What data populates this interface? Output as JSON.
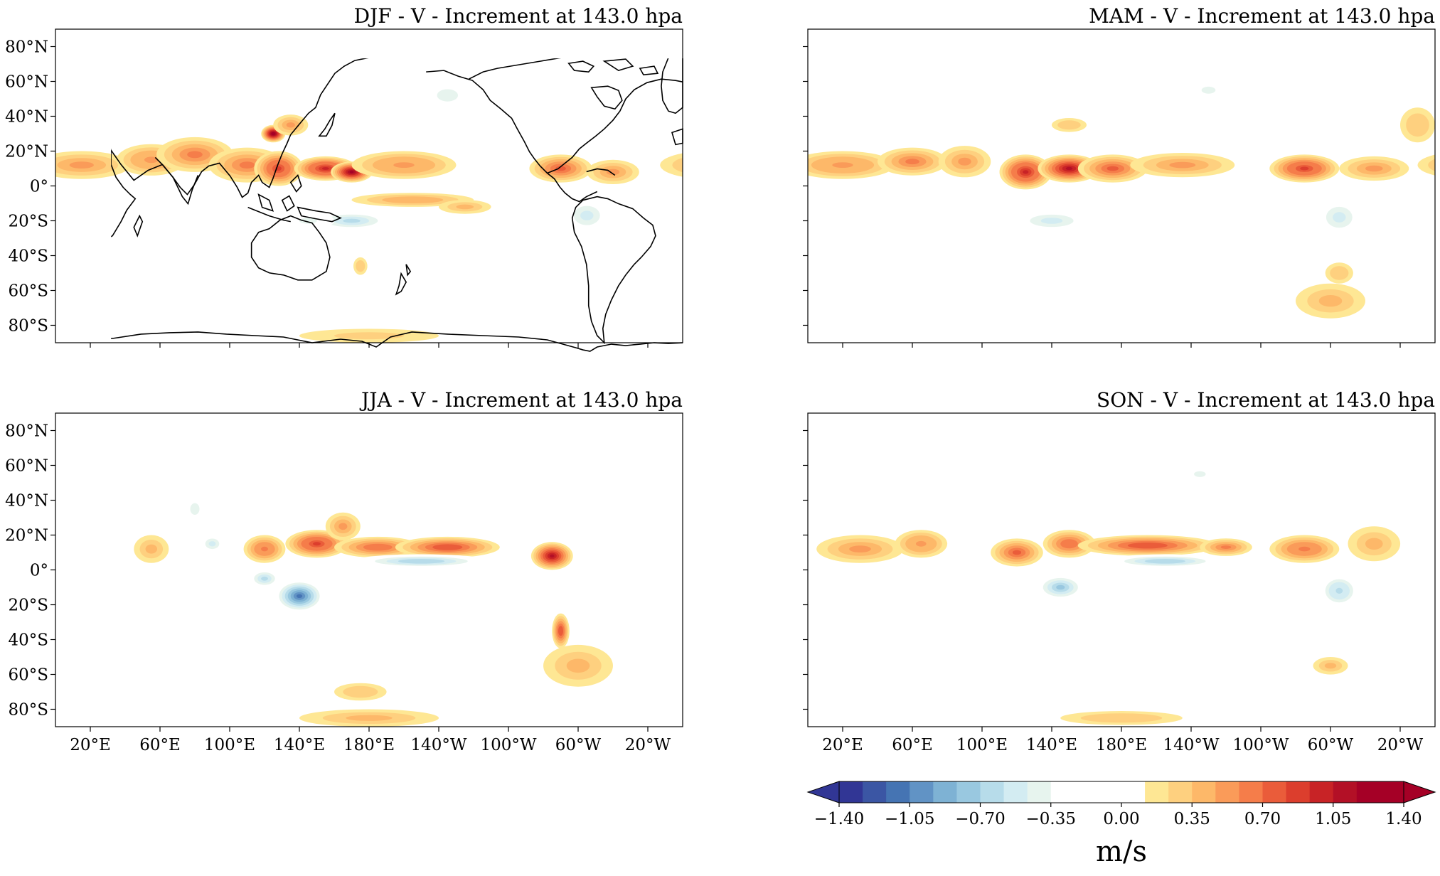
{
  "chart_data": [
    {
      "type": "heatmap",
      "title": "DJF - V - Increment at 143.0 hpa",
      "season": "DJF",
      "projection": "PlateCarree, central longitude 180",
      "lon_range": [
        0,
        360
      ],
      "lat_range": [
        -90,
        90
      ],
      "xticks": [
        "20°E",
        "60°E",
        "100°E",
        "140°E",
        "180°E",
        "140°W",
        "100°W",
        "60°W",
        "20°W"
      ],
      "yticks": [
        "80°N",
        "60°N",
        "40°N",
        "20°N",
        "0°",
        "20°S",
        "40°S",
        "60°S",
        "80°S"
      ],
      "show_xtick_labels": false,
      "show_ytick_labels": true,
      "features": [
        {
          "lon": 15,
          "lat": 12,
          "rx": 28,
          "ry": 8,
          "v": 0.5
        },
        {
          "lon": 55,
          "lat": 15,
          "rx": 20,
          "ry": 9,
          "v": 0.55
        },
        {
          "lon": 80,
          "lat": 18,
          "rx": 22,
          "ry": 10,
          "v": 0.6
        },
        {
          "lon": 110,
          "lat": 12,
          "rx": 22,
          "ry": 10,
          "v": 0.6
        },
        {
          "lon": 125,
          "lat": 30,
          "rx": 7,
          "ry": 5,
          "v": 1.3
        },
        {
          "lon": 135,
          "lat": 35,
          "rx": 10,
          "ry": 6,
          "v": 0.5
        },
        {
          "lon": 128,
          "lat": 10,
          "rx": 14,
          "ry": 10,
          "v": 0.9
        },
        {
          "lon": 155,
          "lat": 10,
          "rx": 18,
          "ry": 7,
          "v": 1.0
        },
        {
          "lon": 170,
          "lat": 8,
          "rx": 12,
          "ry": 6,
          "v": 1.2
        },
        {
          "lon": 200,
          "lat": 12,
          "rx": 30,
          "ry": 8,
          "v": 0.55
        },
        {
          "lon": 205,
          "lat": -8,
          "rx": 35,
          "ry": 4,
          "v": 0.45
        },
        {
          "lon": 235,
          "lat": -12,
          "rx": 15,
          "ry": 4,
          "v": 0.4
        },
        {
          "lon": 290,
          "lat": 10,
          "rx": 18,
          "ry": 8,
          "v": 0.75
        },
        {
          "lon": 320,
          "lat": 8,
          "rx": 15,
          "ry": 7,
          "v": 0.5
        },
        {
          "lon": 170,
          "lat": -20,
          "rx": 25,
          "ry": 6,
          "v": -0.6
        },
        {
          "lon": 145,
          "lat": -20,
          "rx": 15,
          "ry": 5,
          "v": -0.4
        },
        {
          "lon": 305,
          "lat": -17,
          "rx": 15,
          "ry": 11,
          "v": -0.5
        },
        {
          "lon": 225,
          "lat": 52,
          "rx": 12,
          "ry": 7,
          "v": -0.45
        },
        {
          "lon": 250,
          "lat": 40,
          "rx": 8,
          "ry": 5,
          "v": -0.25
        },
        {
          "lon": 175,
          "lat": -46,
          "rx": 4,
          "ry": 5,
          "v": 0.3
        },
        {
          "lon": 180,
          "lat": -86,
          "rx": 40,
          "ry": 4,
          "v": 0.25
        }
      ]
    },
    {
      "type": "heatmap",
      "title": "MAM - V - Increment at 143.0 hpa",
      "season": "MAM",
      "projection": "PlateCarree, central longitude 180",
      "lon_range": [
        0,
        360
      ],
      "lat_range": [
        -90,
        90
      ],
      "xticks": [
        "20°E",
        "60°E",
        "100°E",
        "140°E",
        "180°E",
        "140°W",
        "100°W",
        "60°W",
        "20°W"
      ],
      "yticks": [
        "80°N",
        "60°N",
        "40°N",
        "20°N",
        "0°",
        "20°S",
        "40°S",
        "60°S",
        "80°S"
      ],
      "show_xtick_labels": false,
      "show_ytick_labels": false,
      "features": [
        {
          "lon": 20,
          "lat": 12,
          "rx": 30,
          "ry": 8,
          "v": 0.55
        },
        {
          "lon": 60,
          "lat": 14,
          "rx": 20,
          "ry": 8,
          "v": 0.6
        },
        {
          "lon": 90,
          "lat": 14,
          "rx": 15,
          "ry": 9,
          "v": 0.5
        },
        {
          "lon": 125,
          "lat": 8,
          "rx": 15,
          "ry": 10,
          "v": 1.0
        },
        {
          "lon": 150,
          "lat": 10,
          "rx": 18,
          "ry": 8,
          "v": 1.05
        },
        {
          "lon": 175,
          "lat": 10,
          "rx": 20,
          "ry": 8,
          "v": 0.75
        },
        {
          "lon": 215,
          "lat": 12,
          "rx": 30,
          "ry": 7,
          "v": 0.5
        },
        {
          "lon": 285,
          "lat": 10,
          "rx": 20,
          "ry": 8,
          "v": 0.9
        },
        {
          "lon": 325,
          "lat": 10,
          "rx": 20,
          "ry": 7,
          "v": 0.5
        },
        {
          "lon": 220,
          "lat": 2,
          "rx": 25,
          "ry": 3,
          "v": -0.3
        },
        {
          "lon": 140,
          "lat": -20,
          "rx": 25,
          "ry": 7,
          "v": -0.5
        },
        {
          "lon": 305,
          "lat": -18,
          "rx": 15,
          "ry": 12,
          "v": -0.5
        },
        {
          "lon": 230,
          "lat": 55,
          "rx": 12,
          "ry": 6,
          "v": -0.35
        },
        {
          "lon": 300,
          "lat": -66,
          "rx": 20,
          "ry": 10,
          "v": 0.35
        },
        {
          "lon": 305,
          "lat": -50,
          "rx": 8,
          "ry": 6,
          "v": 0.3
        },
        {
          "lon": 350,
          "lat": 35,
          "rx": 10,
          "ry": 10,
          "v": 0.3
        },
        {
          "lon": 150,
          "lat": 35,
          "rx": 10,
          "ry": 4,
          "v": 0.3
        }
      ]
    },
    {
      "type": "heatmap",
      "title": "JJA - V - Increment at 143.0 hpa",
      "season": "JJA",
      "projection": "PlateCarree, central longitude 180",
      "lon_range": [
        0,
        360
      ],
      "lat_range": [
        -90,
        90
      ],
      "xticks": [
        "20°E",
        "60°E",
        "100°E",
        "140°E",
        "180°E",
        "140°W",
        "100°W",
        "60°W",
        "20°W"
      ],
      "yticks": [
        "80°N",
        "60°N",
        "40°N",
        "20°N",
        "0°",
        "20°S",
        "40°S",
        "60°S",
        "80°S"
      ],
      "show_xtick_labels": true,
      "show_ytick_labels": true,
      "features": [
        {
          "lon": 55,
          "lat": 12,
          "rx": 10,
          "ry": 8,
          "v": 0.4
        },
        {
          "lon": 120,
          "lat": 12,
          "rx": 12,
          "ry": 8,
          "v": 0.65
        },
        {
          "lon": 150,
          "lat": 15,
          "rx": 18,
          "ry": 8,
          "v": 0.9
        },
        {
          "lon": 185,
          "lat": 13,
          "rx": 25,
          "ry": 6,
          "v": 0.7
        },
        {
          "lon": 225,
          "lat": 13,
          "rx": 30,
          "ry": 6,
          "v": 0.8
        },
        {
          "lon": 285,
          "lat": 8,
          "rx": 12,
          "ry": 8,
          "v": 1.05
        },
        {
          "lon": 290,
          "lat": -35,
          "rx": 5,
          "ry": 10,
          "v": 0.8
        },
        {
          "lon": 210,
          "lat": 5,
          "rx": 40,
          "ry": 4,
          "v": -0.7
        },
        {
          "lon": 140,
          "lat": -15,
          "rx": 15,
          "ry": 10,
          "v": -1.05
        },
        {
          "lon": 120,
          "lat": -5,
          "rx": 10,
          "ry": 6,
          "v": -0.6
        },
        {
          "lon": 90,
          "lat": 15,
          "rx": 8,
          "ry": 6,
          "v": -0.5
        },
        {
          "lon": 20,
          "lat": 5,
          "rx": 20,
          "ry": 8,
          "v": -0.3
        },
        {
          "lon": 180,
          "lat": -85,
          "rx": 40,
          "ry": 5,
          "v": 0.35
        },
        {
          "lon": 175,
          "lat": -70,
          "rx": 15,
          "ry": 5,
          "v": 0.3
        },
        {
          "lon": 300,
          "lat": -55,
          "rx": 20,
          "ry": 12,
          "v": 0.4
        },
        {
          "lon": 310,
          "lat": -20,
          "rx": 12,
          "ry": 8,
          "v": -0.3
        },
        {
          "lon": 80,
          "lat": 35,
          "rx": 8,
          "ry": 10,
          "v": -0.35
        },
        {
          "lon": 165,
          "lat": 25,
          "rx": 10,
          "ry": 8,
          "v": 0.5
        }
      ]
    },
    {
      "type": "heatmap",
      "title": "SON - V - Increment at 143.0 hpa",
      "season": "SON",
      "projection": "PlateCarree, central longitude 180",
      "lon_range": [
        0,
        360
      ],
      "lat_range": [
        -90,
        90
      ],
      "xticks": [
        "20°E",
        "60°E",
        "100°E",
        "140°E",
        "180°E",
        "140°W",
        "100°W",
        "60°W",
        "20°W"
      ],
      "yticks": [
        "80°N",
        "60°N",
        "40°N",
        "20°N",
        "0°",
        "20°S",
        "40°S",
        "60°S",
        "80°S"
      ],
      "show_xtick_labels": true,
      "show_ytick_labels": false,
      "features": [
        {
          "lon": 30,
          "lat": 12,
          "rx": 25,
          "ry": 8,
          "v": 0.5
        },
        {
          "lon": 65,
          "lat": 15,
          "rx": 15,
          "ry": 8,
          "v": 0.55
        },
        {
          "lon": 120,
          "lat": 10,
          "rx": 15,
          "ry": 8,
          "v": 0.75
        },
        {
          "lon": 150,
          "lat": 15,
          "rx": 15,
          "ry": 8,
          "v": 0.7
        },
        {
          "lon": 195,
          "lat": 14,
          "rx": 40,
          "ry": 6,
          "v": 0.8
        },
        {
          "lon": 240,
          "lat": 13,
          "rx": 15,
          "ry": 5,
          "v": 0.6
        },
        {
          "lon": 285,
          "lat": 12,
          "rx": 20,
          "ry": 8,
          "v": 0.65
        },
        {
          "lon": 205,
          "lat": 5,
          "rx": 35,
          "ry": 4,
          "v": -0.7
        },
        {
          "lon": 145,
          "lat": -10,
          "rx": 15,
          "ry": 8,
          "v": -0.75
        },
        {
          "lon": 100,
          "lat": -15,
          "rx": 25,
          "ry": 6,
          "v": -0.3
        },
        {
          "lon": 305,
          "lat": -12,
          "rx": 12,
          "ry": 10,
          "v": -0.65
        },
        {
          "lon": 225,
          "lat": 55,
          "rx": 10,
          "ry": 5,
          "v": -0.4
        },
        {
          "lon": 180,
          "lat": -85,
          "rx": 35,
          "ry": 4,
          "v": 0.3
        },
        {
          "lon": 165,
          "lat": -35,
          "rx": 25,
          "ry": 10,
          "v": -0.2
        },
        {
          "lon": 300,
          "lat": -55,
          "rx": 10,
          "ry": 5,
          "v": 0.35
        },
        {
          "lon": 325,
          "lat": 15,
          "rx": 15,
          "ry": 10,
          "v": 0.4
        }
      ]
    }
  ],
  "colorbar": {
    "label": "m/s",
    "tick_labels": [
      "−1.40",
      "−1.05",
      "−0.70",
      "−0.35",
      "0.00",
      "0.35",
      "0.70",
      "1.05",
      "1.40"
    ],
    "levels": [
      -1.4,
      1.4
    ],
    "extend": "both",
    "bins": 24,
    "colors": [
      "#313695",
      "#3b56a4",
      "#4574b3",
      "#6193c5",
      "#7eb2d4",
      "#99c8e0",
      "#b7dcea",
      "#d3ecf2",
      "#e7f4ee",
      "#ffffff",
      "#ffffff",
      "#ffffff",
      "#ffffff",
      "#fee794",
      "#fed07f",
      "#fdb869",
      "#fa9b59",
      "#f57d4a",
      "#ea5c3a",
      "#dc3e2d",
      "#c82326",
      "#b31026",
      "#a50026",
      "#a50026"
    ],
    "lower_color": "#313695",
    "upper_color": "#a50026"
  },
  "coastline_color": "#000000"
}
